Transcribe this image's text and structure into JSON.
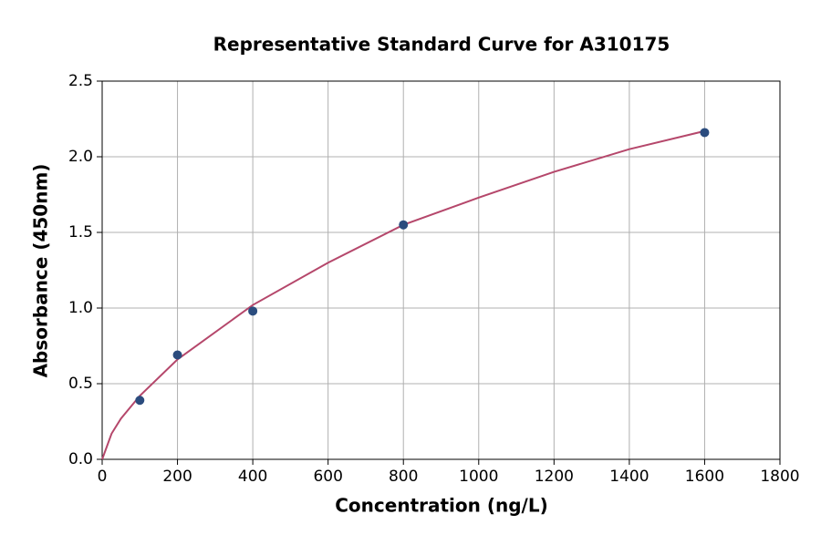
{
  "chart_data": {
    "type": "scatter",
    "title": "Representative Standard Curve for A310175",
    "xlabel": "Concentration (ng/L)",
    "ylabel": "Absorbance (450nm)",
    "xlim": [
      0,
      1800
    ],
    "xticks": [
      0,
      200,
      400,
      600,
      800,
      1000,
      1200,
      1400,
      1600,
      1800
    ],
    "ylim": [
      0,
      2.5
    ],
    "yticks": [
      {
        "value": 0,
        "label": "0.0"
      },
      0.5,
      {
        "value": 1,
        "label": "1.0"
      },
      1.5,
      {
        "value": 2,
        "label": "2.0"
      },
      2.5
    ],
    "grid": true,
    "series": [
      {
        "mode": "line",
        "color": "#b5476b",
        "x": [
          0,
          25,
          50,
          100,
          200,
          400,
          600,
          800,
          1000,
          1200,
          1400,
          1600
        ],
        "values": [
          0,
          0.17,
          0.27,
          0.42,
          0.66,
          1.02,
          1.3,
          1.55,
          1.73,
          1.9,
          2.05,
          2.17
        ]
      },
      {
        "mode": "markers",
        "color": "#2b4c7e",
        "x": [
          100,
          200,
          400,
          800,
          1600
        ],
        "values": [
          0.39,
          0.69,
          0.98,
          1.55,
          2.16
        ]
      }
    ]
  }
}
